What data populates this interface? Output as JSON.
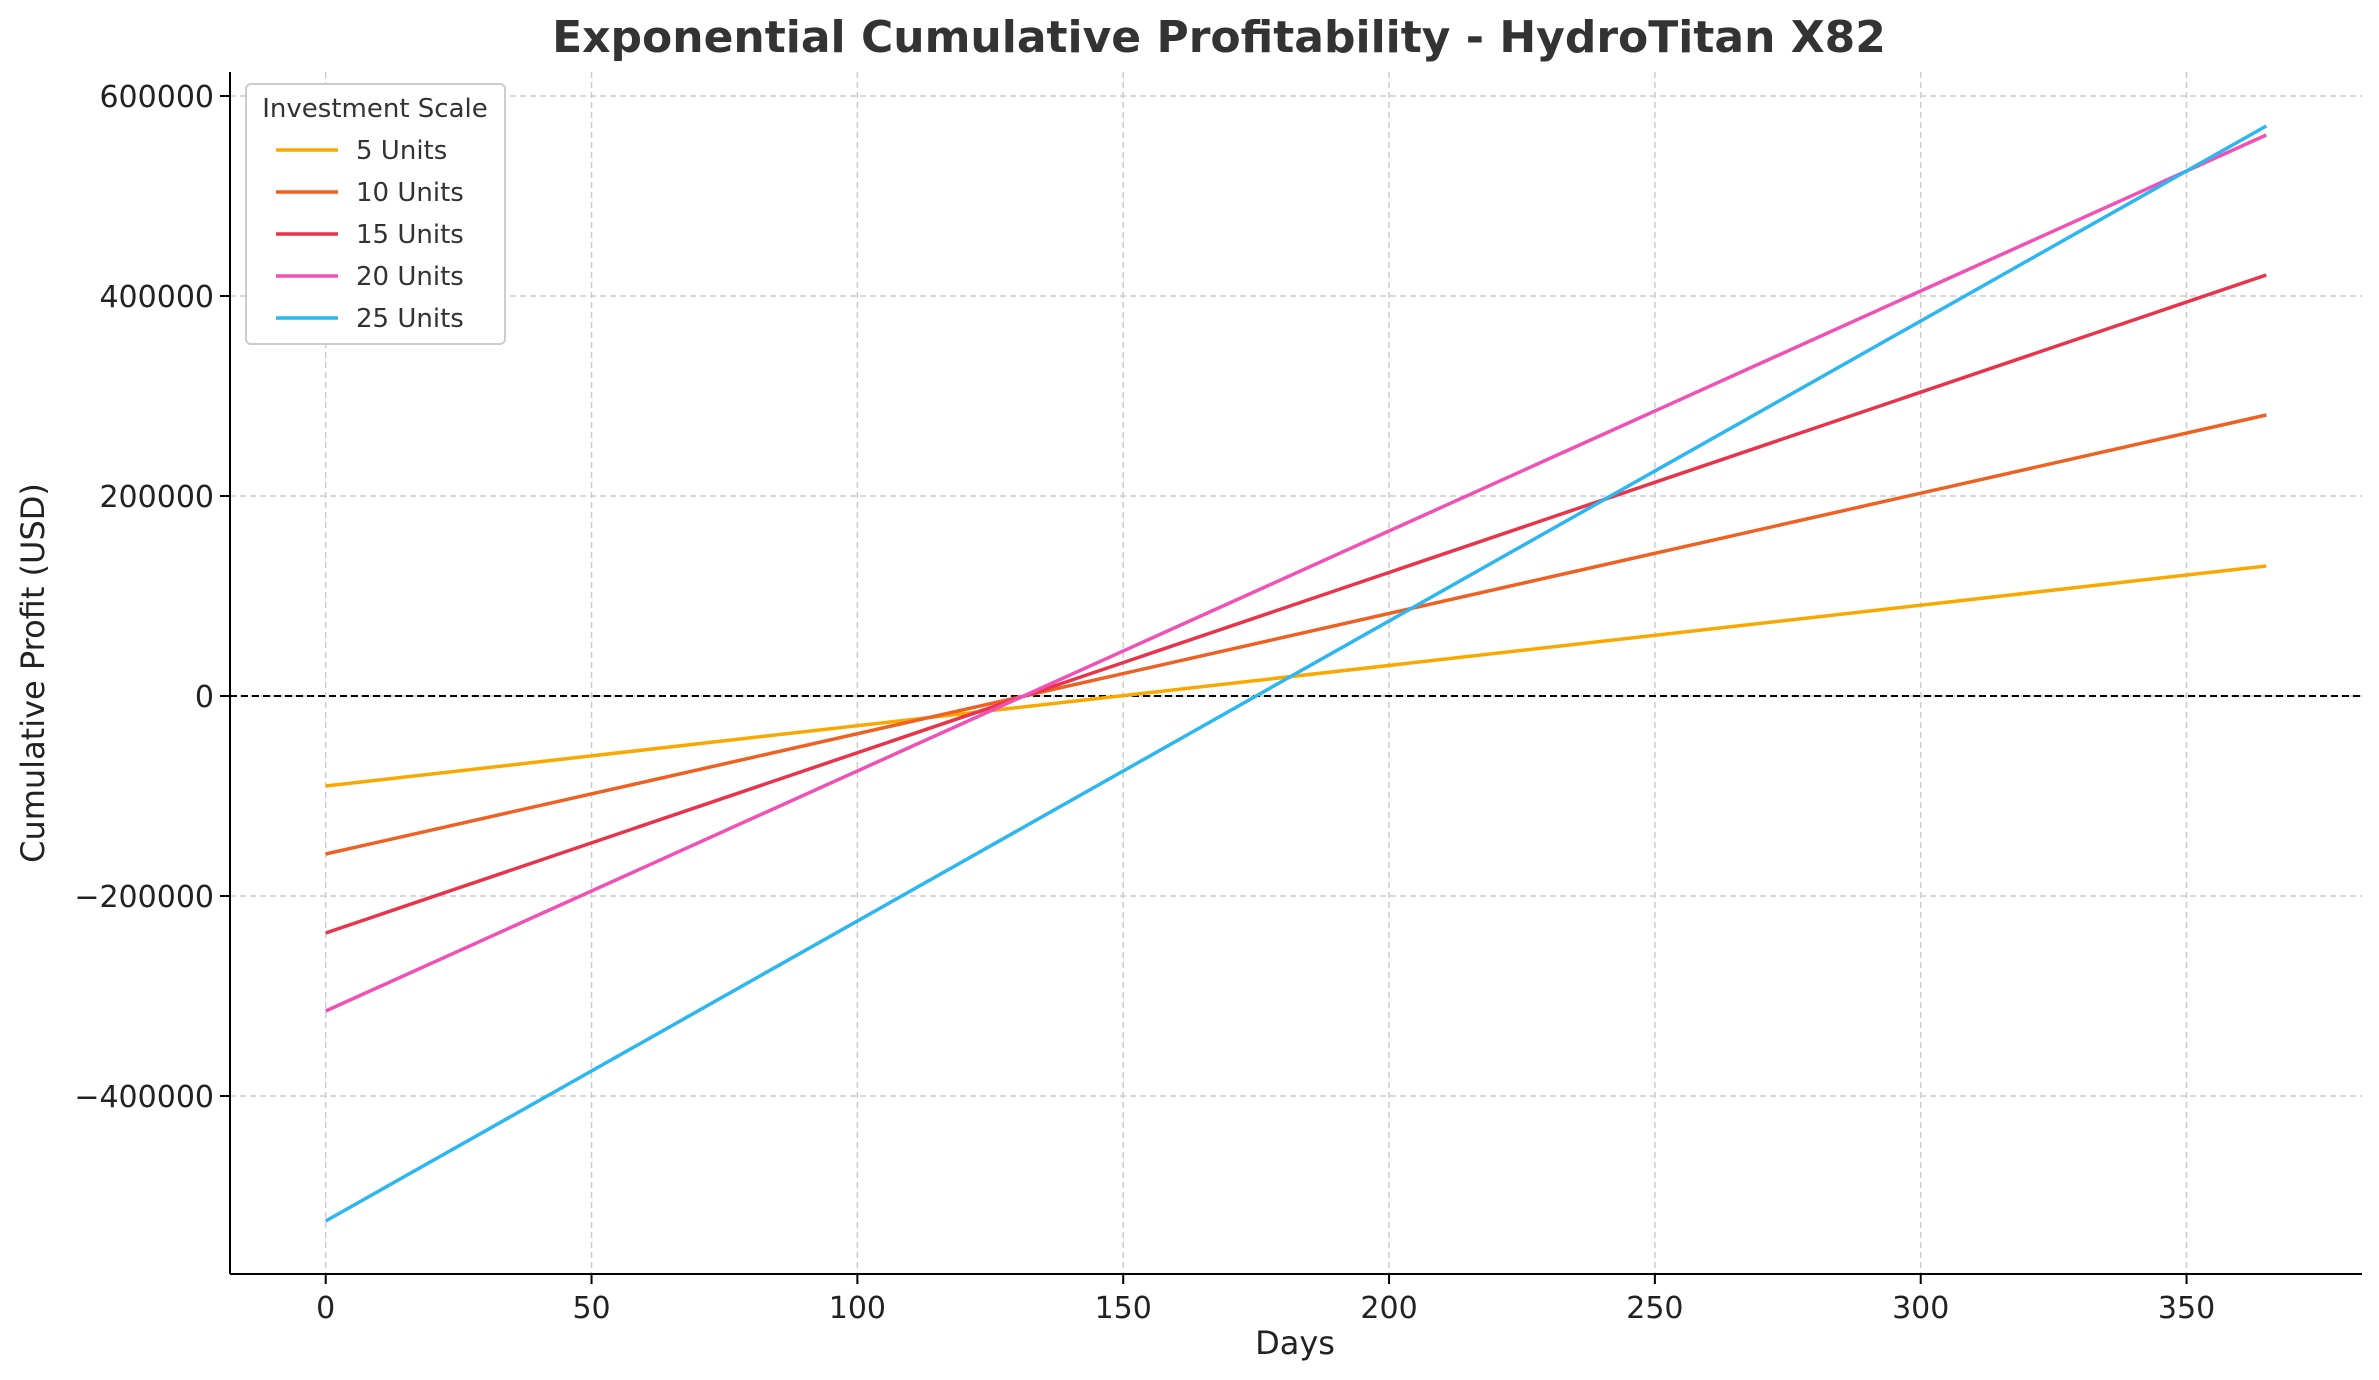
{
  "chart_data": {
    "type": "line",
    "title": "Exponential Cumulative Profitability - HydroTitan X82",
    "xlabel": "Days",
    "ylabel": "Cumulative Profit (USD)",
    "xlim": [
      -18,
      383
    ],
    "ylim": [
      -578000,
      624000
    ],
    "xticks": [
      0,
      50,
      100,
      150,
      200,
      250,
      300,
      350
    ],
    "yticks": [
      -400000,
      -200000,
      0,
      200000,
      400000,
      600000
    ],
    "xtick_labels": [
      "0",
      "50",
      "100",
      "150",
      "200",
      "250",
      "300",
      "350"
    ],
    "ytick_labels": [
      "−400000",
      "−200000",
      "0",
      "200000",
      "400000",
      "600000"
    ],
    "grid": true,
    "zero_line": true,
    "legend": {
      "title": "Investment Scale",
      "placement": "top-left"
    },
    "series": [
      {
        "name": "5 Units",
        "color": "#F9A800",
        "x": [
          0,
          365
        ],
        "y": [
          -90000,
          130000
        ]
      },
      {
        "name": "10 Units",
        "color": "#EE6122",
        "x": [
          0,
          365
        ],
        "y": [
          -158000,
          281000
        ]
      },
      {
        "name": "15 Units",
        "color": "#E8334A",
        "x": [
          0,
          365
        ],
        "y": [
          -237000,
          421000
        ]
      },
      {
        "name": "20 Units",
        "color": "#F150B7",
        "x": [
          0,
          365
        ],
        "y": [
          -315000,
          561000
        ]
      },
      {
        "name": "25 Units",
        "color": "#2DB6EF",
        "x": [
          0,
          365
        ],
        "y": [
          -525000,
          570000
        ]
      }
    ]
  }
}
